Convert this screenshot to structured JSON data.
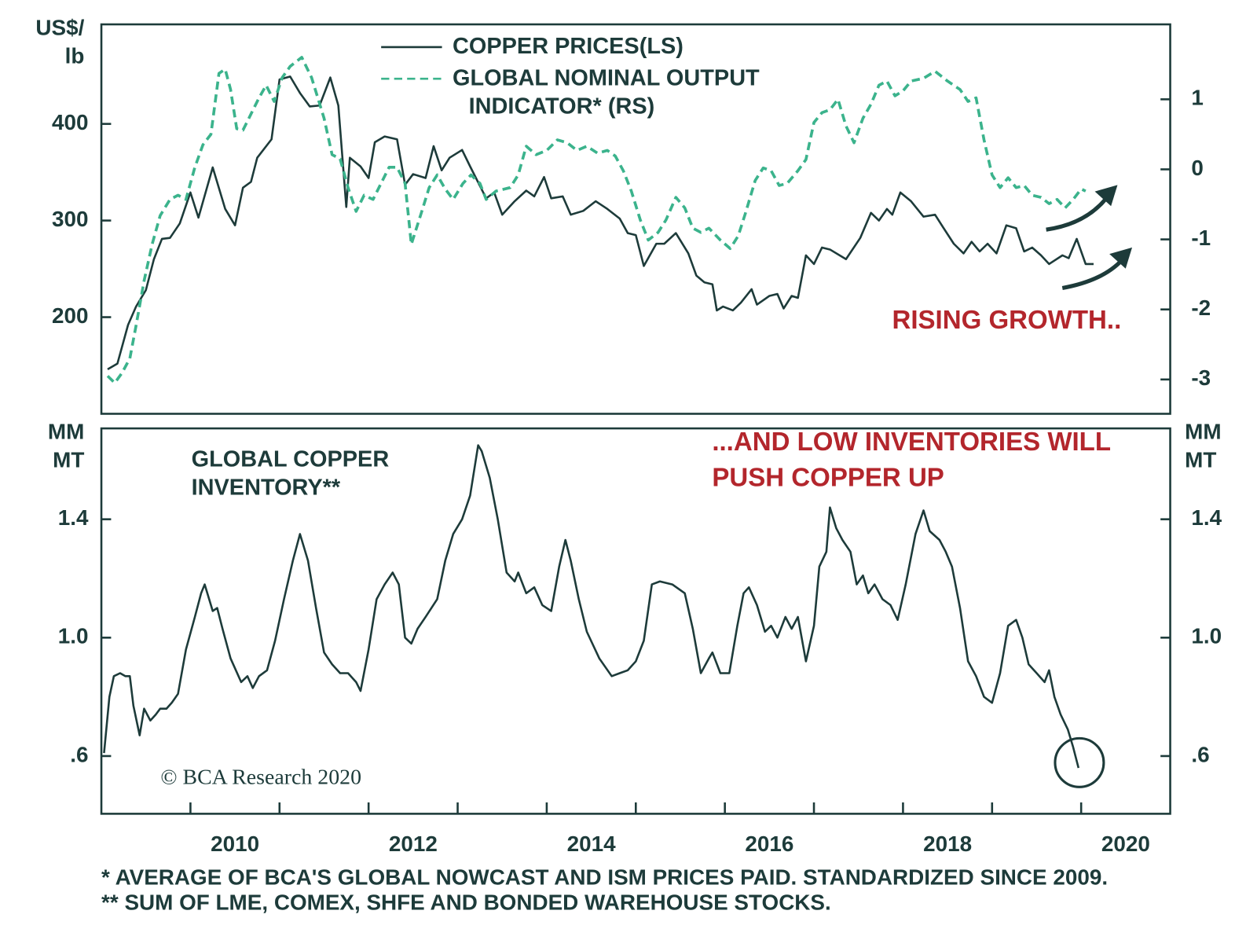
{
  "chart_data": [
    {
      "type": "line",
      "y_label": [
        "US$/",
        "lb"
      ],
      "xlim": [
        2009,
        2021
      ],
      "ylim": [
        100,
        503
      ],
      "yticks": [
        200,
        300,
        400
      ],
      "y2lim": [
        -3.49,
        2.07
      ],
      "y2ticks": [
        -3,
        -2,
        -1,
        0,
        1
      ],
      "legend": "upper center",
      "series": [
        {
          "name": "COPPER PRICES(LS)",
          "color": "#1d3b3a",
          "style": "solid",
          "x": [
            2009.07,
            2009.18,
            2009.3,
            2009.39,
            2009.5,
            2009.59,
            2009.68,
            2009.77,
            2009.88,
            2010.0,
            2010.09,
            2010.25,
            2010.39,
            2010.5,
            2010.59,
            2010.68,
            2010.75,
            2010.91,
            2011.0,
            2011.12,
            2011.23,
            2011.34,
            2011.45,
            2011.57,
            2011.66,
            2011.75,
            2011.79,
            2011.91,
            2012.0,
            2012.07,
            2012.18,
            2012.32,
            2012.41,
            2012.5,
            2012.64,
            2012.73,
            2012.82,
            2012.91,
            2013.05,
            2013.14,
            2013.32,
            2013.41,
            2013.5,
            2013.64,
            2013.77,
            2013.86,
            2013.97,
            2014.05,
            2014.18,
            2014.27,
            2014.41,
            2014.55,
            2014.68,
            2014.82,
            2014.91,
            2015.0,
            2015.09,
            2015.23,
            2015.32,
            2015.45,
            2015.59,
            2015.68,
            2015.77,
            2015.86,
            2015.91,
            2015.98,
            2016.09,
            2016.18,
            2016.3,
            2016.36,
            2016.5,
            2016.59,
            2016.66,
            2016.75,
            2016.82,
            2016.91,
            2017.0,
            2017.09,
            2017.18,
            2017.36,
            2017.52,
            2017.64,
            2017.73,
            2017.82,
            2017.88,
            2017.97,
            2018.09,
            2018.23,
            2018.36,
            2018.45,
            2018.57,
            2018.68,
            2018.77,
            2018.86,
            2018.95,
            2019.05,
            2019.16,
            2019.27,
            2019.36,
            2019.45,
            2019.55,
            2019.64,
            2019.79,
            2019.86,
            2019.95,
            2020.05,
            2020.14
          ],
          "values": [
            146,
            152,
            192,
            211,
            228,
            260,
            281,
            282,
            297,
            329,
            303,
            355,
            312,
            295,
            334,
            340,
            365,
            384,
            446,
            449,
            432,
            418,
            419,
            448,
            419,
            314,
            365,
            356,
            344,
            381,
            387,
            384,
            337,
            348,
            344,
            377,
            352,
            365,
            373,
            356,
            323,
            329,
            306,
            320,
            331,
            325,
            345,
            323,
            325,
            306,
            310,
            320,
            312,
            302,
            287,
            285,
            253,
            276,
            276,
            287,
            266,
            243,
            236,
            234,
            207,
            211,
            207,
            215,
            229,
            213,
            222,
            224,
            209,
            222,
            220,
            264,
            255,
            272,
            270,
            260,
            282,
            308,
            300,
            312,
            306,
            329,
            320,
            304,
            306,
            293,
            276,
            266,
            278,
            268,
            276,
            266,
            295,
            292,
            268,
            272,
            264,
            255,
            264,
            261,
            281,
            255,
            255
          ]
        },
        {
          "name": "GLOBAL NOMINAL OUTPUT INDICATOR* (RS)",
          "color": "#3bb38c",
          "style": "dashed",
          "axis": "y2",
          "x": [
            2009.07,
            2009.15,
            2009.23,
            2009.32,
            2009.39,
            2009.48,
            2009.57,
            2009.66,
            2009.77,
            2009.86,
            2009.95,
            2010.05,
            2010.14,
            2010.23,
            2010.32,
            2010.39,
            2010.45,
            2010.52,
            2010.59,
            2010.68,
            2010.77,
            2010.85,
            2010.94,
            2011.03,
            2011.12,
            2011.25,
            2011.36,
            2011.5,
            2011.59,
            2011.68,
            2011.77,
            2011.86,
            2011.95,
            2012.05,
            2012.14,
            2012.23,
            2012.32,
            2012.41,
            2012.48,
            2012.59,
            2012.68,
            2012.77,
            2012.86,
            2012.95,
            2013.06,
            2013.15,
            2013.25,
            2013.32,
            2013.43,
            2013.59,
            2013.68,
            2013.77,
            2013.88,
            2014.0,
            2014.12,
            2014.23,
            2014.34,
            2014.45,
            2014.57,
            2014.68,
            2014.77,
            2014.86,
            2014.95,
            2015.05,
            2015.14,
            2015.25,
            2015.34,
            2015.45,
            2015.55,
            2015.64,
            2015.73,
            2015.82,
            2015.95,
            2016.06,
            2016.15,
            2016.23,
            2016.34,
            2016.43,
            2016.52,
            2016.61,
            2016.7,
            2016.82,
            2016.91,
            2017.0,
            2017.09,
            2017.18,
            2017.27,
            2017.36,
            2017.45,
            2017.55,
            2017.64,
            2017.73,
            2017.82,
            2017.91,
            2018.0,
            2018.09,
            2018.23,
            2018.36,
            2018.5,
            2018.64,
            2018.73,
            2018.82,
            2018.91,
            2019.0,
            2019.09,
            2019.18,
            2019.27,
            2019.36,
            2019.45,
            2019.55,
            2019.64,
            2019.73,
            2019.82,
            2019.91,
            2020.0,
            2020.05
          ],
          "values": [
            -2.95,
            -3.05,
            -2.91,
            -2.7,
            -2.23,
            -1.59,
            -1.07,
            -0.66,
            -0.43,
            -0.37,
            -0.43,
            0.03,
            0.35,
            0.5,
            1.37,
            1.43,
            1.14,
            0.58,
            0.56,
            0.79,
            1.02,
            1.2,
            0.97,
            1.31,
            1.47,
            1.6,
            1.31,
            0.73,
            0.21,
            0.15,
            -0.26,
            -0.6,
            -0.37,
            -0.43,
            -0.2,
            0.03,
            0.03,
            -0.2,
            -1.07,
            -0.63,
            -0.26,
            -0.08,
            -0.28,
            -0.43,
            -0.2,
            -0.08,
            -0.2,
            -0.43,
            -0.31,
            -0.26,
            -0.08,
            0.33,
            0.21,
            0.27,
            0.42,
            0.38,
            0.27,
            0.33,
            0.23,
            0.27,
            0.19,
            -0.02,
            -0.31,
            -0.72,
            -1.01,
            -0.9,
            -0.72,
            -0.4,
            -0.55,
            -0.84,
            -0.9,
            -0.84,
            -1.01,
            -1.13,
            -0.95,
            -0.63,
            -0.16,
            0.02,
            -0.02,
            -0.23,
            -0.2,
            -0.02,
            0.14,
            0.67,
            0.81,
            0.85,
            1.0,
            0.62,
            0.38,
            0.73,
            0.93,
            1.2,
            1.26,
            1.05,
            1.12,
            1.26,
            1.3,
            1.4,
            1.26,
            1.14,
            0.97,
            1.02,
            0.42,
            -0.08,
            -0.26,
            -0.12,
            -0.26,
            -0.23,
            -0.37,
            -0.4,
            -0.49,
            -0.43,
            -0.55,
            -0.43,
            -0.28,
            -0.31
          ]
        }
      ],
      "annotations": [
        {
          "text": "RISING GROWTH..",
          "color": "#b3262c"
        }
      ]
    },
    {
      "type": "line",
      "y_label": [
        "MM",
        "MT"
      ],
      "y2_label": [
        "MM",
        "MT"
      ],
      "y2_mirror": true,
      "xlim": [
        2009,
        2021
      ],
      "ylim": [
        0.405,
        1.707
      ],
      "yticks": [
        {
          "value": 0.6,
          "label": ".6"
        },
        {
          "value": 1,
          "label": "1.0"
        },
        1.4
      ],
      "xticks": [
        2010,
        2012,
        2014,
        2016,
        2018,
        2020
      ],
      "xminorticks": [
        2011,
        2013,
        2015,
        2017,
        2019
      ],
      "legend": false,
      "series": [
        {
          "name": "GLOBAL COPPER INVENTORY**",
          "color": "#1d3b3a",
          "style": "solid",
          "x": [
            2009.03,
            2009.09,
            2009.14,
            2009.21,
            2009.27,
            2009.32,
            2009.36,
            2009.43,
            2009.48,
            2009.55,
            2009.61,
            2009.66,
            2009.73,
            2009.79,
            2009.86,
            2009.95,
            2010.05,
            2010.12,
            2010.16,
            2010.25,
            2010.3,
            2010.36,
            2010.45,
            2010.57,
            2010.64,
            2010.7,
            2010.77,
            2010.86,
            2010.95,
            2011.05,
            2011.15,
            2011.23,
            2011.32,
            2011.41,
            2011.5,
            2011.59,
            2011.68,
            2011.77,
            2011.86,
            2011.91,
            2012.0,
            2012.09,
            2012.18,
            2012.27,
            2012.34,
            2012.41,
            2012.48,
            2012.55,
            2012.64,
            2012.77,
            2012.86,
            2012.95,
            2013.05,
            2013.14,
            2013.23,
            2013.27,
            2013.36,
            2013.45,
            2013.55,
            2013.64,
            2013.68,
            2013.77,
            2013.86,
            2013.95,
            2014.05,
            2014.14,
            2014.21,
            2014.27,
            2014.36,
            2014.45,
            2014.59,
            2014.73,
            2014.82,
            2014.91,
            2015.0,
            2015.09,
            2015.18,
            2015.27,
            2015.41,
            2015.55,
            2015.64,
            2015.73,
            2015.82,
            2015.86,
            2015.95,
            2016.05,
            2016.14,
            2016.21,
            2016.27,
            2016.36,
            2016.45,
            2016.52,
            2016.59,
            2016.68,
            2016.75,
            2016.82,
            2016.91,
            2017.0,
            2017.06,
            2017.14,
            2017.18,
            2017.25,
            2017.32,
            2017.41,
            2017.48,
            2017.55,
            2017.61,
            2017.68,
            2017.77,
            2017.86,
            2017.94,
            2018.03,
            2018.14,
            2018.23,
            2018.3,
            2018.41,
            2018.48,
            2018.55,
            2018.64,
            2018.73,
            2018.82,
            2018.91,
            2019.0,
            2019.09,
            2019.18,
            2019.27,
            2019.34,
            2019.41,
            2019.5,
            2019.59,
            2019.64,
            2019.7,
            2019.77,
            2019.85,
            2019.91,
            2019.97
          ],
          "values": [
            0.61,
            0.8,
            0.87,
            0.88,
            0.87,
            0.87,
            0.77,
            0.67,
            0.76,
            0.72,
            0.74,
            0.76,
            0.76,
            0.78,
            0.81,
            0.96,
            1.07,
            1.15,
            1.18,
            1.09,
            1.1,
            1.03,
            0.93,
            0.85,
            0.87,
            0.83,
            0.87,
            0.89,
            0.99,
            1.13,
            1.26,
            1.35,
            1.26,
            1.1,
            0.95,
            0.91,
            0.88,
            0.88,
            0.85,
            0.82,
            0.96,
            1.13,
            1.18,
            1.22,
            1.18,
            1.0,
            0.98,
            1.03,
            1.07,
            1.13,
            1.26,
            1.35,
            1.4,
            1.48,
            1.65,
            1.63,
            1.54,
            1.4,
            1.22,
            1.19,
            1.22,
            1.15,
            1.17,
            1.11,
            1.09,
            1.24,
            1.33,
            1.26,
            1.13,
            1.02,
            0.93,
            0.87,
            0.88,
            0.89,
            0.92,
            0.99,
            1.18,
            1.19,
            1.18,
            1.15,
            1.03,
            0.88,
            0.93,
            0.95,
            0.88,
            0.88,
            1.04,
            1.15,
            1.17,
            1.11,
            1.02,
            1.04,
            1.0,
            1.07,
            1.03,
            1.07,
            0.92,
            1.04,
            1.24,
            1.29,
            1.44,
            1.37,
            1.33,
            1.29,
            1.18,
            1.21,
            1.15,
            1.18,
            1.13,
            1.11,
            1.06,
            1.18,
            1.35,
            1.43,
            1.36,
            1.33,
            1.29,
            1.24,
            1.1,
            0.92,
            0.87,
            0.8,
            0.78,
            0.88,
            1.04,
            1.06,
            1.0,
            0.91,
            0.88,
            0.85,
            0.89,
            0.8,
            0.74,
            0.69,
            0.63,
            0.56
          ]
        }
      ],
      "annotations": [
        {
          "text": "...AND LOW INVENTORIES WILL PUSH COPPER UP",
          "color": "#b3262c"
        }
      ],
      "source": "© BCA Research 2020",
      "footnotes": [
        "* AVERAGE OF BCA'S GLOBAL NOWCAST AND ISM PRICES PAID. STANDARDIZED SINCE 2009.",
        "** SUM OF LME, COMEX, SHFE AND BONDED WAREHOUSE STOCKS."
      ]
    }
  ]
}
